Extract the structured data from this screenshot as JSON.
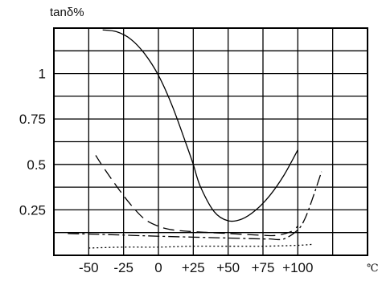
{
  "chart_data": {
    "type": "line",
    "title": "",
    "ylabel": "tanδ%",
    "xlabel": "",
    "x_unit": "℃",
    "xlim": [
      -75,
      150
    ],
    "ylim": [
      0,
      1.25
    ],
    "grid": true,
    "x_tick_values": [
      -50,
      -25,
      0,
      25,
      50,
      75,
      100
    ],
    "x_tick_labels": [
      "-50",
      "-25",
      "0",
      "+25",
      "+50",
      "+75",
      "+100"
    ],
    "y_tick_values": [
      0.25,
      0.5,
      0.75,
      1
    ],
    "y_tick_labels": [
      "0.25",
      "0.5",
      "0.75",
      "1"
    ],
    "series": [
      {
        "style": "solid",
        "x": [
          -40,
          -30,
          -20,
          -10,
          0,
          10,
          20,
          25,
          30,
          40,
          50,
          60,
          70,
          80,
          90,
          100
        ],
        "y": [
          1.24,
          1.23,
          1.19,
          1.11,
          0.99,
          0.82,
          0.61,
          0.5,
          0.38,
          0.24,
          0.19,
          0.2,
          0.25,
          0.33,
          0.44,
          0.58
        ]
      },
      {
        "style": "dashed",
        "x": [
          -45,
          -40,
          -30,
          -20,
          -10,
          0,
          10,
          25,
          50,
          75,
          85,
          95,
          100
        ],
        "y": [
          0.55,
          0.49,
          0.38,
          0.28,
          0.2,
          0.16,
          0.14,
          0.13,
          0.12,
          0.11,
          0.11,
          0.13,
          0.16
        ]
      },
      {
        "style": "dash-dot",
        "x": [
          -65,
          -40,
          -20,
          0,
          25,
          50,
          75,
          80,
          90,
          100,
          105,
          110,
          117
        ],
        "y": [
          0.12,
          0.115,
          0.11,
          0.105,
          0.1,
          0.095,
          0.09,
          0.09,
          0.09,
          0.14,
          0.2,
          0.3,
          0.46
        ]
      },
      {
        "style": "dotted",
        "x": [
          -50,
          -25,
          0,
          25,
          50,
          75,
          100,
          110
        ],
        "y": [
          0.04,
          0.045,
          0.045,
          0.05,
          0.05,
          0.05,
          0.055,
          0.06
        ]
      }
    ]
  }
}
